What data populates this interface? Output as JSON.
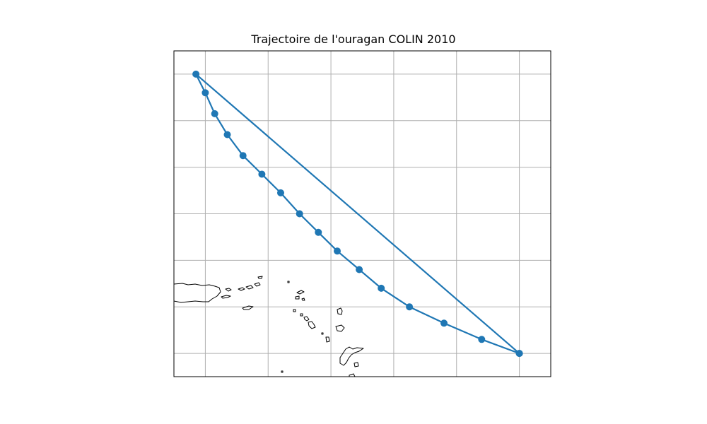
{
  "figure": {
    "title": "Trajectoire de l'ouragan COLIN 2010"
  },
  "colors": {
    "track": "#1f77b4",
    "grid": "#b0b0b0",
    "coastline": "#000000",
    "background": "#ffffff"
  },
  "chart_data": {
    "type": "line",
    "title": "Trajectoire de l'ouragan COLIN 2010",
    "xlabel": "",
    "ylabel": "",
    "grid": true,
    "projection": "PlateCarree",
    "extent": {
      "lon": [
        -66,
        -54
      ],
      "lat": [
        14.5,
        21.5
      ]
    },
    "gridlines": {
      "lon": [
        -65,
        -63,
        -61,
        -59,
        -57,
        -55
      ],
      "lat": [
        15,
        16,
        17,
        18,
        19,
        20,
        21
      ]
    },
    "series": [
      {
        "marker": "o",
        "lon": [
          -55,
          -56.2,
          -57.4,
          -58.5,
          -59.4,
          -60.1,
          -60.8,
          -61.4,
          -62.0,
          -62.6,
          -63.2,
          -63.8,
          -64.3,
          -64.7,
          -65.0,
          -65.3,
          -55
        ],
        "lat": [
          15.0,
          15.3,
          15.65,
          16.0,
          16.4,
          16.8,
          17.2,
          17.6,
          18.0,
          18.45,
          18.85,
          19.25,
          19.7,
          20.15,
          20.6,
          21.0,
          15.0
        ]
      }
    ]
  }
}
